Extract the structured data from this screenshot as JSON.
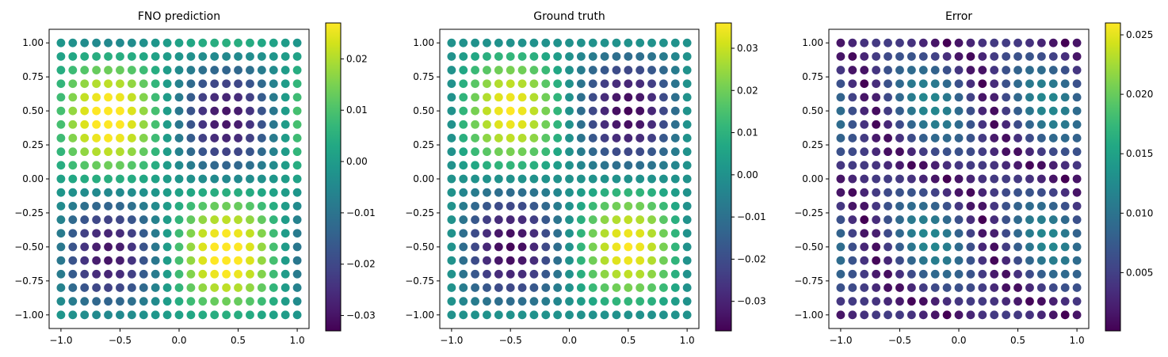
{
  "chart_data": [
    {
      "type": "scatter",
      "title": "FNO prediction",
      "xlabel": "",
      "ylabel": "",
      "xlim": [
        -1.1,
        1.1
      ],
      "ylim": [
        -1.1,
        1.1
      ],
      "xticks": [
        -1.0,
        -0.5,
        0.0,
        0.5,
        1.0
      ],
      "xtick_labels": [
        "−1.0",
        "−0.5",
        "0.0",
        "0.5",
        "1.0"
      ],
      "yticks": [
        -1.0,
        -0.75,
        -0.5,
        -0.25,
        0.0,
        0.25,
        0.5,
        0.75,
        1.0
      ],
      "ytick_labels": [
        "−1.00",
        "−0.75",
        "−0.50",
        "−0.25",
        "0.00",
        "0.25",
        "0.50",
        "0.75",
        "1.00"
      ],
      "grid": "21x21 points on [-1,1]x[-1,1]",
      "field": "-0.03 * sin(pi*(x+0.1)) * sin(pi*(y+0.05))",
      "colormap": "viridis",
      "colorbar": {
        "range": [
          -0.033,
          0.027
        ],
        "ticks": [
          -0.03,
          -0.02,
          -0.01,
          0.0,
          0.01,
          0.02
        ],
        "tick_labels": [
          "−0.03",
          "−0.02",
          "−0.01",
          "0.00",
          "0.01",
          "0.02"
        ]
      }
    },
    {
      "type": "scatter",
      "title": "Ground truth",
      "xlabel": "",
      "ylabel": "",
      "xlim": [
        -1.1,
        1.1
      ],
      "ylim": [
        -1.1,
        1.1
      ],
      "xticks": [
        -1.0,
        -0.5,
        0.0,
        0.5,
        1.0
      ],
      "xtick_labels": [
        "−1.0",
        "−0.5",
        "0.0",
        "0.5",
        "1.0"
      ],
      "yticks": [
        -1.0,
        -0.75,
        -0.5,
        -0.25,
        0.0,
        0.25,
        0.5,
        0.75,
        1.0
      ],
      "ytick_labels": [
        "−1.00",
        "−0.75",
        "−0.50",
        "−0.25",
        "0.00",
        "0.25",
        "0.50",
        "0.75",
        "1.00"
      ],
      "grid": "21x21 points on [-1,1]x[-1,1]",
      "field": "-0.036 * sin(pi*x) * sin(pi*y)",
      "colormap": "viridis",
      "colorbar": {
        "range": [
          -0.037,
          0.036
        ],
        "ticks": [
          -0.03,
          -0.02,
          -0.01,
          0.0,
          0.01,
          0.02,
          0.03
        ],
        "tick_labels": [
          "−0.03",
          "−0.02",
          "−0.01",
          "0.00",
          "0.01",
          "0.02",
          "0.03"
        ]
      }
    },
    {
      "type": "scatter",
      "title": "Error",
      "xlabel": "",
      "ylabel": "",
      "xlim": [
        -1.1,
        1.1
      ],
      "ylim": [
        -1.1,
        1.1
      ],
      "xticks": [
        -1.0,
        -0.5,
        0.0,
        0.5,
        1.0
      ],
      "xtick_labels": [
        "−1.0",
        "−0.5",
        "0.0",
        "0.5",
        "1.0"
      ],
      "yticks": [
        -1.0,
        -0.75,
        -0.5,
        -0.25,
        0.0,
        0.25,
        0.5,
        0.75,
        1.0
      ],
      "ytick_labels": [
        "−1.00",
        "−0.75",
        "−0.50",
        "−0.25",
        "0.00",
        "0.25",
        "0.50",
        "0.75",
        "1.00"
      ],
      "grid": "21x21 points on [-1,1]x[-1,1]",
      "field": "|FNO prediction - Ground truth|",
      "colormap": "viridis",
      "colorbar": {
        "range": [
          0.0001,
          0.026
        ],
        "ticks": [
          0.005,
          0.01,
          0.015,
          0.02,
          0.025
        ],
        "tick_labels": [
          "0.005",
          "0.010",
          "0.015",
          "0.020",
          "0.025"
        ]
      }
    }
  ]
}
